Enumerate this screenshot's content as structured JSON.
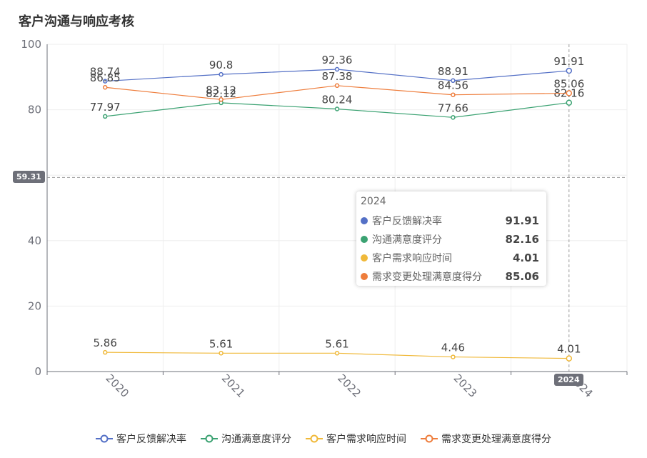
{
  "title": "客户沟通与响应考核",
  "chart_data": {
    "type": "line",
    "categories": [
      "2020",
      "2021",
      "2022",
      "2023",
      "2024"
    ],
    "ylim": [
      0,
      100
    ],
    "yticks": [
      0,
      20,
      40,
      60,
      80,
      100
    ],
    "series": [
      {
        "name": "客户反馈解决率",
        "color": "#5470c6",
        "values": [
          88.74,
          90.8,
          92.36,
          88.91,
          91.91
        ]
      },
      {
        "name": "沟通满意度评分",
        "color": "#3ba272",
        "values": [
          77.97,
          82.12,
          80.24,
          77.66,
          82.16
        ]
      },
      {
        "name": "客户需求响应时间",
        "color": "#f0b93a",
        "values": [
          5.86,
          5.61,
          5.61,
          4.46,
          4.01
        ]
      },
      {
        "name": "需求变更处理满意度得分",
        "color": "#ee7d3c",
        "values": [
          86.85,
          83.12,
          87.38,
          84.56,
          85.06
        ]
      }
    ]
  },
  "crosshair": {
    "y_label": "59.31",
    "x_label": "2024"
  },
  "tooltip": {
    "title": "2024",
    "rows": [
      {
        "name": "客户反馈解决率",
        "value": "91.91",
        "color": "#5470c6"
      },
      {
        "name": "沟通满意度评分",
        "value": "82.16",
        "color": "#3ba272"
      },
      {
        "name": "客户需求响应时间",
        "value": "4.01",
        "color": "#f0b93a"
      },
      {
        "name": "需求变更处理满意度得分",
        "value": "85.06",
        "color": "#ee7d3c"
      }
    ]
  }
}
